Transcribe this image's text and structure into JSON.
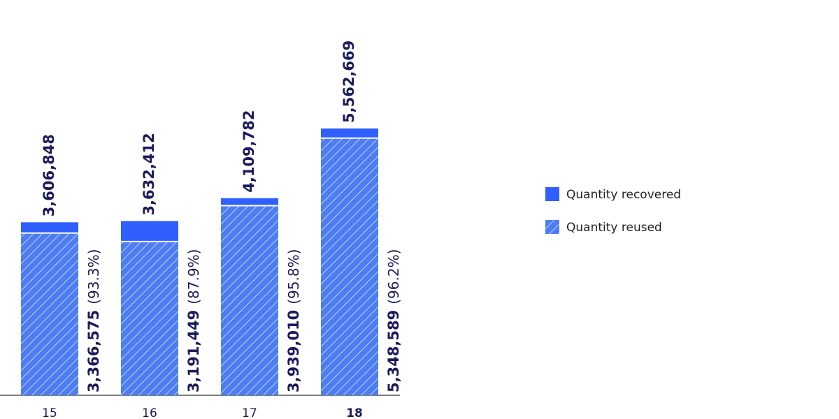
{
  "chart_data": {
    "type": "overlay-bar",
    "categories": [
      "15",
      "16",
      "17",
      "18"
    ],
    "series": [
      {
        "name": "Quantity recovered",
        "color": "#2f5fff",
        "values": [
          3606848,
          3632412,
          4109782,
          5562669
        ],
        "value_labels": [
          "3,606,848",
          "3,632,412",
          "4,109,782",
          "5,562,669"
        ]
      },
      {
        "name": "Quantity reused",
        "color": "#4d7df5",
        "hatch": true,
        "values": [
          3366575,
          3191449,
          3939010,
          5348589
        ],
        "value_labels": [
          "3,366,575",
          "3,191,449",
          "3,939,010",
          "5,348,589"
        ],
        "share_labels": [
          "(93.3%)",
          "(87.9%)",
          "(95.8%)",
          "(96.2%)"
        ]
      }
    ]
  }
}
